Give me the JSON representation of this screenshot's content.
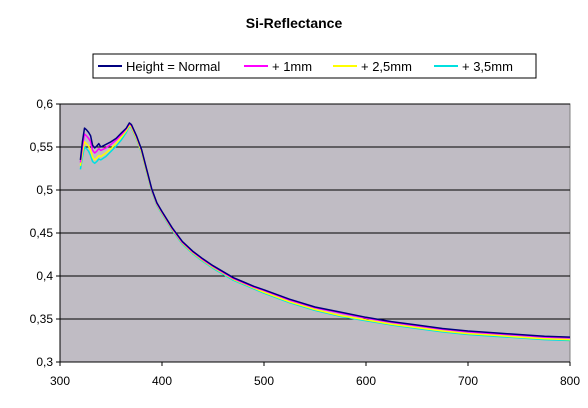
{
  "chart_data": {
    "type": "line",
    "title": "Si-Reflectance",
    "xlabel": "",
    "ylabel": "",
    "xlim": [
      300,
      800
    ],
    "ylim": [
      0.3,
      0.6
    ],
    "x_ticks": [
      300,
      400,
      500,
      600,
      700,
      800
    ],
    "y_ticks": [
      0.3,
      0.35,
      0.4,
      0.45,
      0.5,
      0.55,
      0.6
    ],
    "x_tick_labels": [
      "300",
      "400",
      "500",
      "600",
      "700",
      "800"
    ],
    "y_tick_labels": [
      "0,3",
      "0,35",
      "0,4",
      "0,45",
      "0,5",
      "0,55",
      "0,6"
    ],
    "grid": "horizontal",
    "legend_position": "top",
    "plot_background": "#c0bcc4",
    "series": [
      {
        "name": "Height = Normal",
        "color": "#000080",
        "x": [
          320,
          322,
          324,
          326,
          328,
          330,
          332,
          334,
          336,
          338,
          340,
          345,
          350,
          355,
          360,
          365,
          368,
          370,
          375,
          380,
          385,
          390,
          395,
          400,
          410,
          420,
          430,
          440,
          450,
          460,
          470,
          480,
          490,
          500,
          525,
          550,
          575,
          600,
          625,
          650,
          675,
          700,
          725,
          750,
          775,
          800
        ],
        "y": [
          0.535,
          0.556,
          0.572,
          0.57,
          0.567,
          0.563,
          0.552,
          0.549,
          0.551,
          0.554,
          0.55,
          0.553,
          0.556,
          0.56,
          0.566,
          0.572,
          0.578,
          0.576,
          0.563,
          0.547,
          0.524,
          0.501,
          0.485,
          0.475,
          0.456,
          0.44,
          0.429,
          0.42,
          0.412,
          0.405,
          0.398,
          0.393,
          0.388,
          0.384,
          0.373,
          0.364,
          0.358,
          0.352,
          0.347,
          0.343,
          0.339,
          0.336,
          0.334,
          0.332,
          0.33,
          0.329
        ]
      },
      {
        "name": "+ 1mm",
        "color": "#ff00ff",
        "x": [
          320,
          322,
          324,
          326,
          328,
          330,
          332,
          334,
          336,
          338,
          340,
          345,
          350,
          355,
          360,
          365,
          368,
          370,
          375,
          380,
          385,
          390,
          395,
          400,
          410,
          420,
          430,
          440,
          450,
          460,
          470,
          480,
          490,
          500,
          525,
          550,
          575,
          600,
          625,
          650,
          675,
          700,
          725,
          750,
          775,
          800
        ],
        "y": [
          0.532,
          0.55,
          0.565,
          0.563,
          0.56,
          0.556,
          0.546,
          0.543,
          0.545,
          0.548,
          0.546,
          0.549,
          0.553,
          0.558,
          0.564,
          0.571,
          0.577,
          0.575,
          0.562,
          0.546,
          0.523,
          0.5,
          0.484,
          0.474,
          0.455,
          0.439,
          0.428,
          0.419,
          0.411,
          0.404,
          0.397,
          0.392,
          0.387,
          0.383,
          0.372,
          0.363,
          0.357,
          0.351,
          0.346,
          0.342,
          0.338,
          0.335,
          0.333,
          0.331,
          0.329,
          0.328
        ]
      },
      {
        "name": "+ 2,5mm",
        "color": "#ffff00",
        "x": [
          320,
          322,
          324,
          326,
          328,
          330,
          332,
          334,
          336,
          338,
          340,
          345,
          350,
          355,
          360,
          365,
          368,
          370,
          375,
          380,
          385,
          390,
          395,
          400,
          410,
          420,
          430,
          440,
          450,
          460,
          470,
          480,
          490,
          500,
          525,
          550,
          575,
          600,
          625,
          650,
          675,
          700,
          725,
          750,
          775,
          800
        ],
        "y": [
          0.528,
          0.543,
          0.556,
          0.554,
          0.551,
          0.546,
          0.538,
          0.535,
          0.537,
          0.54,
          0.539,
          0.543,
          0.548,
          0.554,
          0.561,
          0.569,
          0.575,
          0.573,
          0.56,
          0.544,
          0.521,
          0.499,
          0.483,
          0.473,
          0.454,
          0.438,
          0.427,
          0.418,
          0.41,
          0.403,
          0.396,
          0.391,
          0.386,
          0.381,
          0.37,
          0.361,
          0.354,
          0.349,
          0.344,
          0.34,
          0.336,
          0.333,
          0.331,
          0.329,
          0.327,
          0.326
        ]
      },
      {
        "name": "+ 3,5mm",
        "color": "#00e0e0",
        "x": [
          320,
          322,
          324,
          326,
          328,
          330,
          332,
          334,
          336,
          338,
          340,
          345,
          350,
          355,
          360,
          365,
          368,
          370,
          375,
          380,
          385,
          390,
          395,
          400,
          410,
          420,
          430,
          440,
          450,
          460,
          470,
          480,
          490,
          500,
          525,
          550,
          575,
          600,
          625,
          650,
          675,
          700,
          725,
          750,
          775,
          800
        ],
        "y": [
          0.524,
          0.538,
          0.55,
          0.548,
          0.545,
          0.54,
          0.533,
          0.531,
          0.533,
          0.536,
          0.535,
          0.539,
          0.545,
          0.551,
          0.558,
          0.567,
          0.574,
          0.572,
          0.559,
          0.543,
          0.52,
          0.498,
          0.482,
          0.472,
          0.453,
          0.437,
          0.426,
          0.417,
          0.409,
          0.402,
          0.395,
          0.39,
          0.385,
          0.38,
          0.369,
          0.36,
          0.353,
          0.348,
          0.343,
          0.339,
          0.335,
          0.332,
          0.33,
          0.328,
          0.326,
          0.325
        ]
      }
    ]
  }
}
